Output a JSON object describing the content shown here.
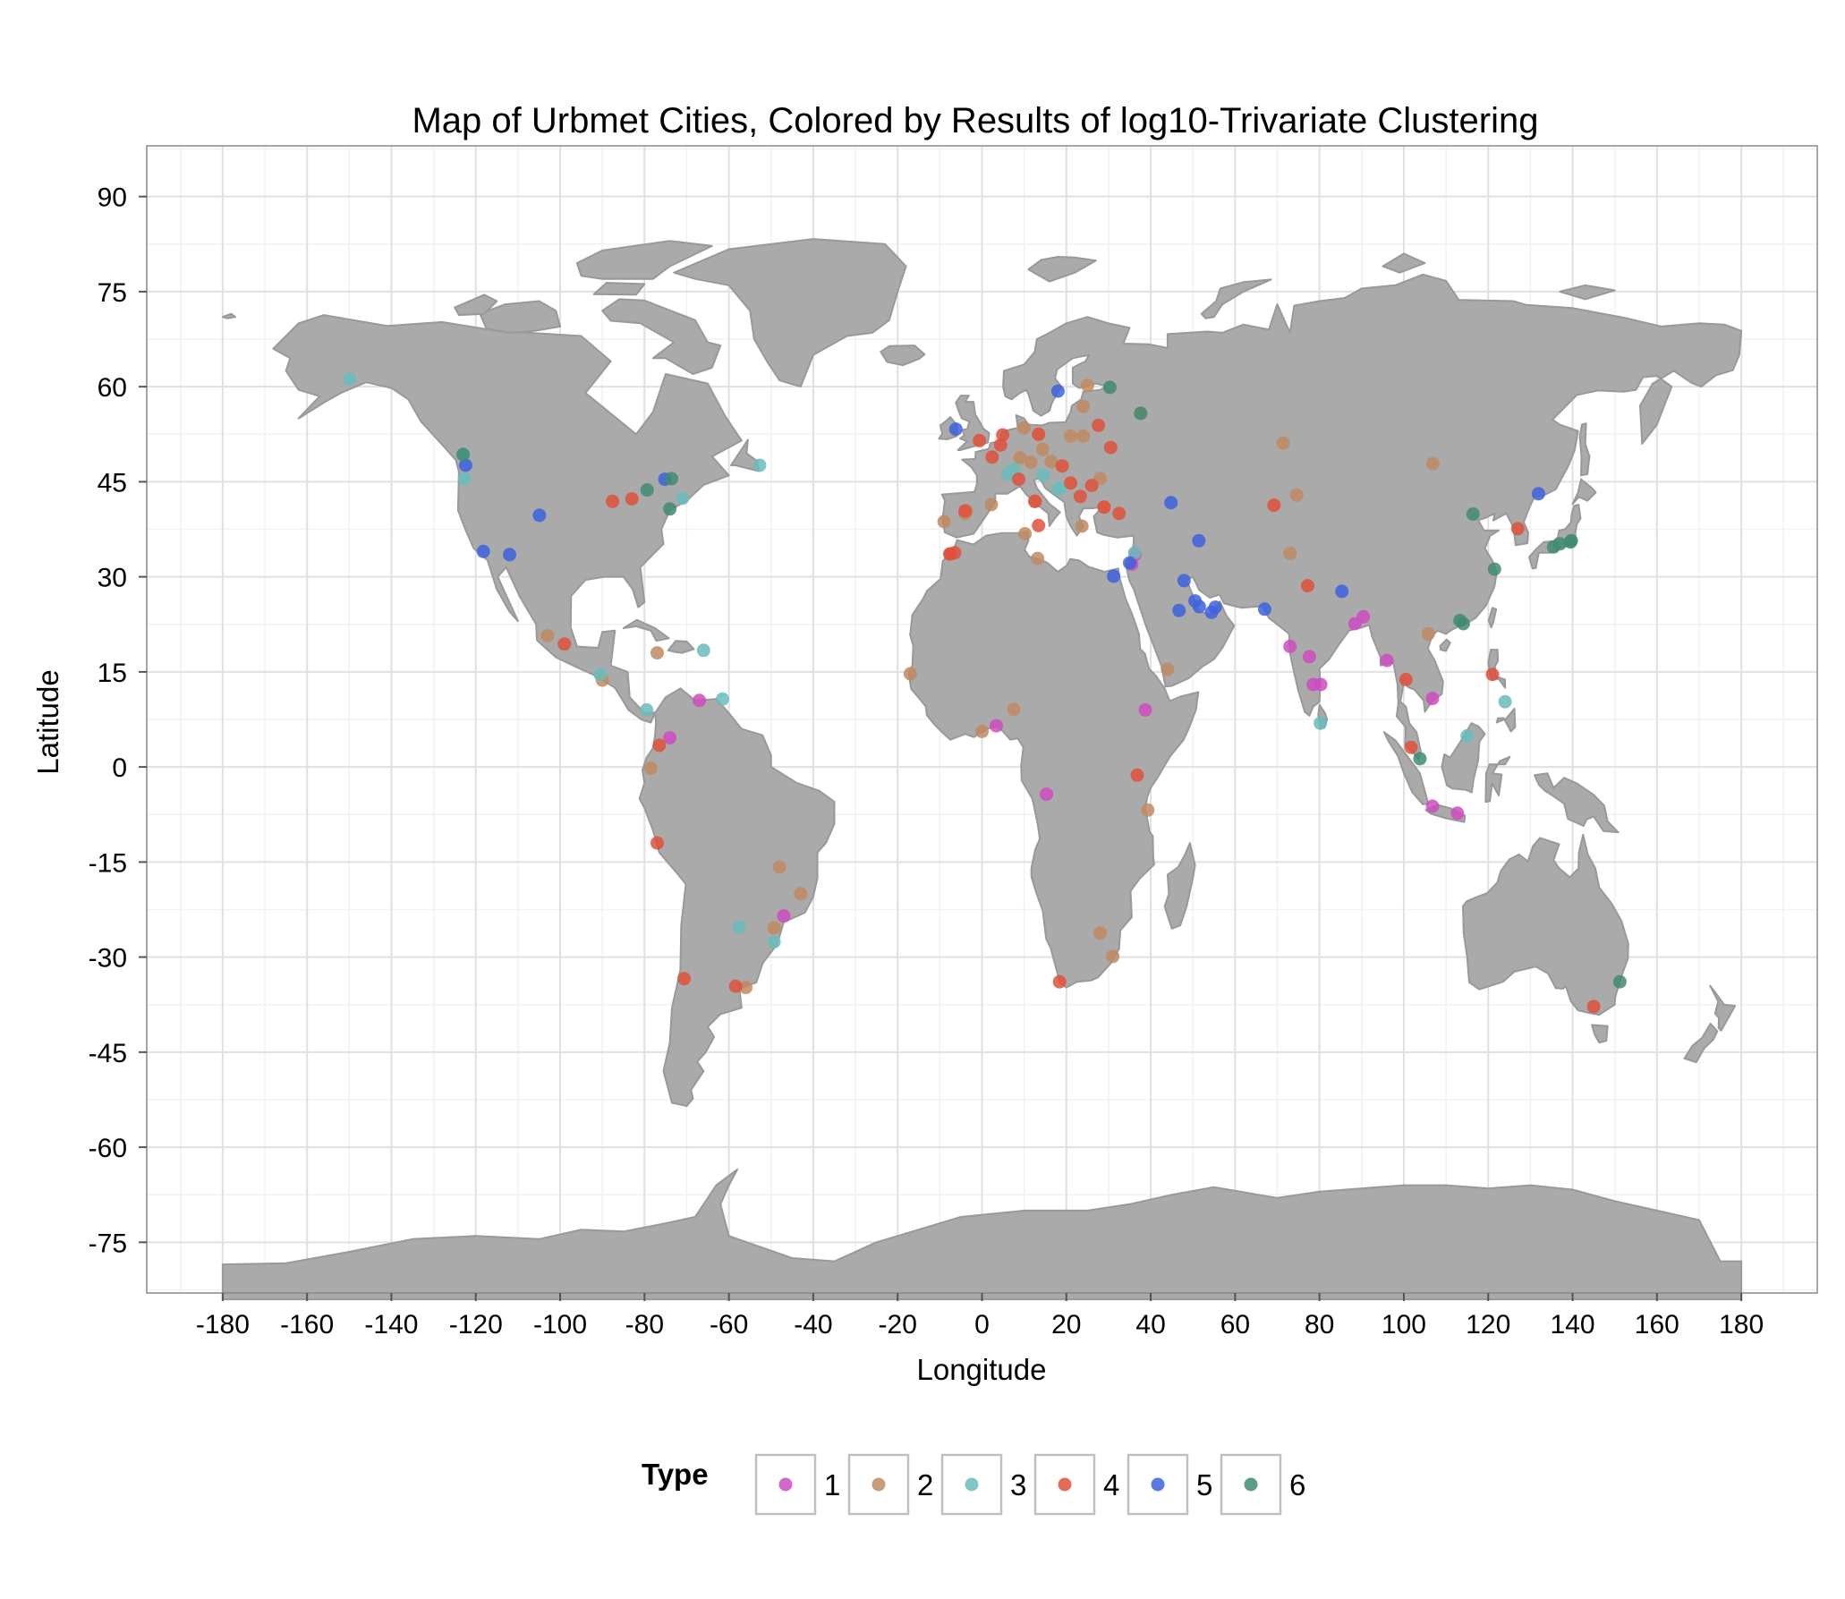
{
  "chart_data": {
    "type": "scatter",
    "title": "Map of Urbmet Cities, Colored by Results of log10-Trivariate Clustering",
    "xlabel": "Longitude",
    "ylabel": "Latitude",
    "xlim": [
      -198,
      198
    ],
    "ylim": [
      -83,
      98
    ],
    "x_ticks": [
      -180,
      -160,
      -140,
      -120,
      -100,
      -80,
      -60,
      -40,
      -20,
      0,
      20,
      40,
      60,
      80,
      100,
      120,
      140,
      160,
      180
    ],
    "x_tick_labels": [
      "-180",
      "-160",
      "-140",
      "-120",
      "-100",
      "-80",
      "-60",
      "-40",
      "-20",
      "0",
      "20",
      "40",
      "60",
      "80",
      "100",
      "120",
      "140",
      "160",
      "180"
    ],
    "y_ticks": [
      90,
      75,
      60,
      45,
      30,
      15,
      0,
      -15,
      -30,
      -45,
      -60,
      -75
    ],
    "y_tick_labels": [
      "90",
      "75",
      "60",
      "45",
      "30",
      "15",
      "0",
      "-15",
      "-30",
      "-45",
      "-60",
      "-75"
    ],
    "grid": true,
    "legend": {
      "title": "Type",
      "position": "bottom"
    },
    "background_map": "world country outlines",
    "colors": {
      "land": "#aaaaaa",
      "border": "#999999",
      "grid_major": "#e0e0e0",
      "grid_minor": "#f2f2f2",
      "panel_border": "#888888"
    },
    "series": [
      {
        "name": "1",
        "color": "#cc4cc0",
        "points": [
          [
            -67,
            10.5
          ],
          [
            -74,
            4.6
          ],
          [
            3.4,
            6.5
          ],
          [
            15.3,
            -4.3
          ],
          [
            38.7,
            9
          ],
          [
            36.3,
            33.5
          ],
          [
            35.5,
            32
          ],
          [
            73,
            19
          ],
          [
            77.6,
            17.4
          ],
          [
            78.5,
            13
          ],
          [
            80.3,
            13
          ],
          [
            88.4,
            22.6
          ],
          [
            90.4,
            23.7
          ],
          [
            96,
            16.8
          ],
          [
            106.8,
            10.8
          ],
          [
            106.8,
            -6.2
          ],
          [
            112.7,
            -7.3
          ],
          [
            -47,
            -23.5
          ]
        ]
      },
      {
        "name": "2",
        "color": "#c08a62",
        "points": [
          [
            -103,
            20.7
          ],
          [
            -90,
            13.7
          ],
          [
            -77,
            18
          ],
          [
            -78.5,
            -0.2
          ],
          [
            -48,
            -15.8
          ],
          [
            -43,
            -20
          ],
          [
            -49.3,
            -25.4
          ],
          [
            -56,
            -34.8
          ],
          [
            28,
            -26.2
          ],
          [
            31,
            -29.9
          ],
          [
            7.5,
            9.1
          ],
          [
            0,
            5.6
          ],
          [
            39.3,
            -6.8
          ],
          [
            44,
            15.4
          ],
          [
            -17,
            14.7
          ],
          [
            -9,
            38.7
          ],
          [
            -3.7,
            40.4
          ],
          [
            2.2,
            41.4
          ],
          [
            12.5,
            41.9
          ],
          [
            10.2,
            36.8
          ],
          [
            13.2,
            32.9
          ],
          [
            23.7,
            38
          ],
          [
            29,
            41
          ],
          [
            28,
            45.5
          ],
          [
            24,
            52.2
          ],
          [
            21,
            52.2
          ],
          [
            16.4,
            48.2
          ],
          [
            14.4,
            50.1
          ],
          [
            13.4,
            52.5
          ],
          [
            10,
            53.5
          ],
          [
            9,
            48.8
          ],
          [
            11.6,
            48.1
          ],
          [
            24,
            56.9
          ],
          [
            25,
            60.2
          ],
          [
            37.6,
            55.8
          ],
          [
            74.6,
            42.9
          ],
          [
            71.4,
            51.1
          ],
          [
            73,
            33.7
          ],
          [
            106.9,
            47.9
          ],
          [
            105.8,
            21
          ],
          [
            -4,
            40
          ]
        ]
      },
      {
        "name": "3",
        "color": "#6bbcbc",
        "points": [
          [
            -149.9,
            61.2
          ],
          [
            -123,
            49.3
          ],
          [
            -122.7,
            45.5
          ],
          [
            -71,
            42.4
          ],
          [
            -52.7,
            47.6
          ],
          [
            -66,
            18.4
          ],
          [
            -61.5,
            10.7
          ],
          [
            -90.5,
            14.6
          ],
          [
            -79.5,
            9
          ],
          [
            -57.6,
            -25.3
          ],
          [
            -49.3,
            -27.6
          ],
          [
            6.1,
            46.2
          ],
          [
            7.5,
            47
          ],
          [
            14.5,
            46
          ],
          [
            18,
            43.9
          ],
          [
            18.5,
            44
          ],
          [
            36.2,
            33.8
          ],
          [
            80.2,
            6.9
          ],
          [
            115,
            4.9
          ],
          [
            124,
            10.3
          ]
        ]
      },
      {
        "name": "4",
        "color": "#e0513c",
        "points": [
          [
            -87.6,
            41.9
          ],
          [
            -83,
            42.3
          ],
          [
            -99,
            19.4
          ],
          [
            -76.5,
            3.4
          ],
          [
            -77,
            -12
          ],
          [
            -70.6,
            -33.4
          ],
          [
            -58.4,
            -34.6
          ],
          [
            18.4,
            -33.9
          ],
          [
            36.8,
            -1.3
          ],
          [
            -7.6,
            33.6
          ],
          [
            -6.5,
            33.8
          ],
          [
            -4,
            40.4
          ],
          [
            2.4,
            48.9
          ],
          [
            -0.6,
            51.5
          ],
          [
            4.4,
            50.8
          ],
          [
            4.9,
            52.4
          ],
          [
            8.7,
            45.4
          ],
          [
            13.4,
            52.5
          ],
          [
            12.6,
            41.9
          ],
          [
            13.4,
            38.1
          ],
          [
            19,
            47.5
          ],
          [
            21,
            44.8
          ],
          [
            23.3,
            42.7
          ],
          [
            26,
            44.4
          ],
          [
            28.9,
            41
          ],
          [
            30.5,
            50.4
          ],
          [
            27.6,
            53.9
          ],
          [
            32.5,
            40
          ],
          [
            69.2,
            41.3
          ],
          [
            77.2,
            28.6
          ],
          [
            100.5,
            13.8
          ],
          [
            101.7,
            3.1
          ],
          [
            121,
            14.6
          ],
          [
            127,
            37.6
          ],
          [
            145,
            -37.8
          ],
          [
            -7.6,
            33.6
          ]
        ]
      },
      {
        "name": "5",
        "color": "#3d61dd",
        "points": [
          [
            -122.4,
            47.6
          ],
          [
            -118.2,
            34
          ],
          [
            -112,
            33.5
          ],
          [
            -104.9,
            39.7
          ],
          [
            -75.2,
            45.4
          ],
          [
            -6.2,
            53.3
          ],
          [
            18,
            59.3
          ],
          [
            31.2,
            30.1
          ],
          [
            35,
            32.2
          ],
          [
            44.8,
            41.7
          ],
          [
            51.4,
            35.7
          ],
          [
            46.7,
            24.7
          ],
          [
            47.9,
            29.4
          ],
          [
            50.5,
            26.2
          ],
          [
            51.5,
            25.3
          ],
          [
            54.4,
            24.4
          ],
          [
            55.3,
            25.2
          ],
          [
            67,
            24.9
          ],
          [
            85.3,
            27.7
          ],
          [
            131.9,
            43.1
          ]
        ]
      },
      {
        "name": "6",
        "color": "#3f8b73",
        "points": [
          [
            -123,
            49.3
          ],
          [
            -79.4,
            43.7
          ],
          [
            -73.6,
            45.5
          ],
          [
            -74,
            40.7
          ],
          [
            30.3,
            59.9
          ],
          [
            37.6,
            55.8
          ],
          [
            116.4,
            39.9
          ],
          [
            121.5,
            31.2
          ],
          [
            113.3,
            23.1
          ],
          [
            114.1,
            22.6
          ],
          [
            103.8,
            1.3
          ],
          [
            135.5,
            34.7
          ],
          [
            137,
            35.2
          ],
          [
            139.7,
            35.7
          ],
          [
            151.2,
            -33.9
          ],
          [
            139.5,
            35.5
          ]
        ]
      }
    ]
  }
}
